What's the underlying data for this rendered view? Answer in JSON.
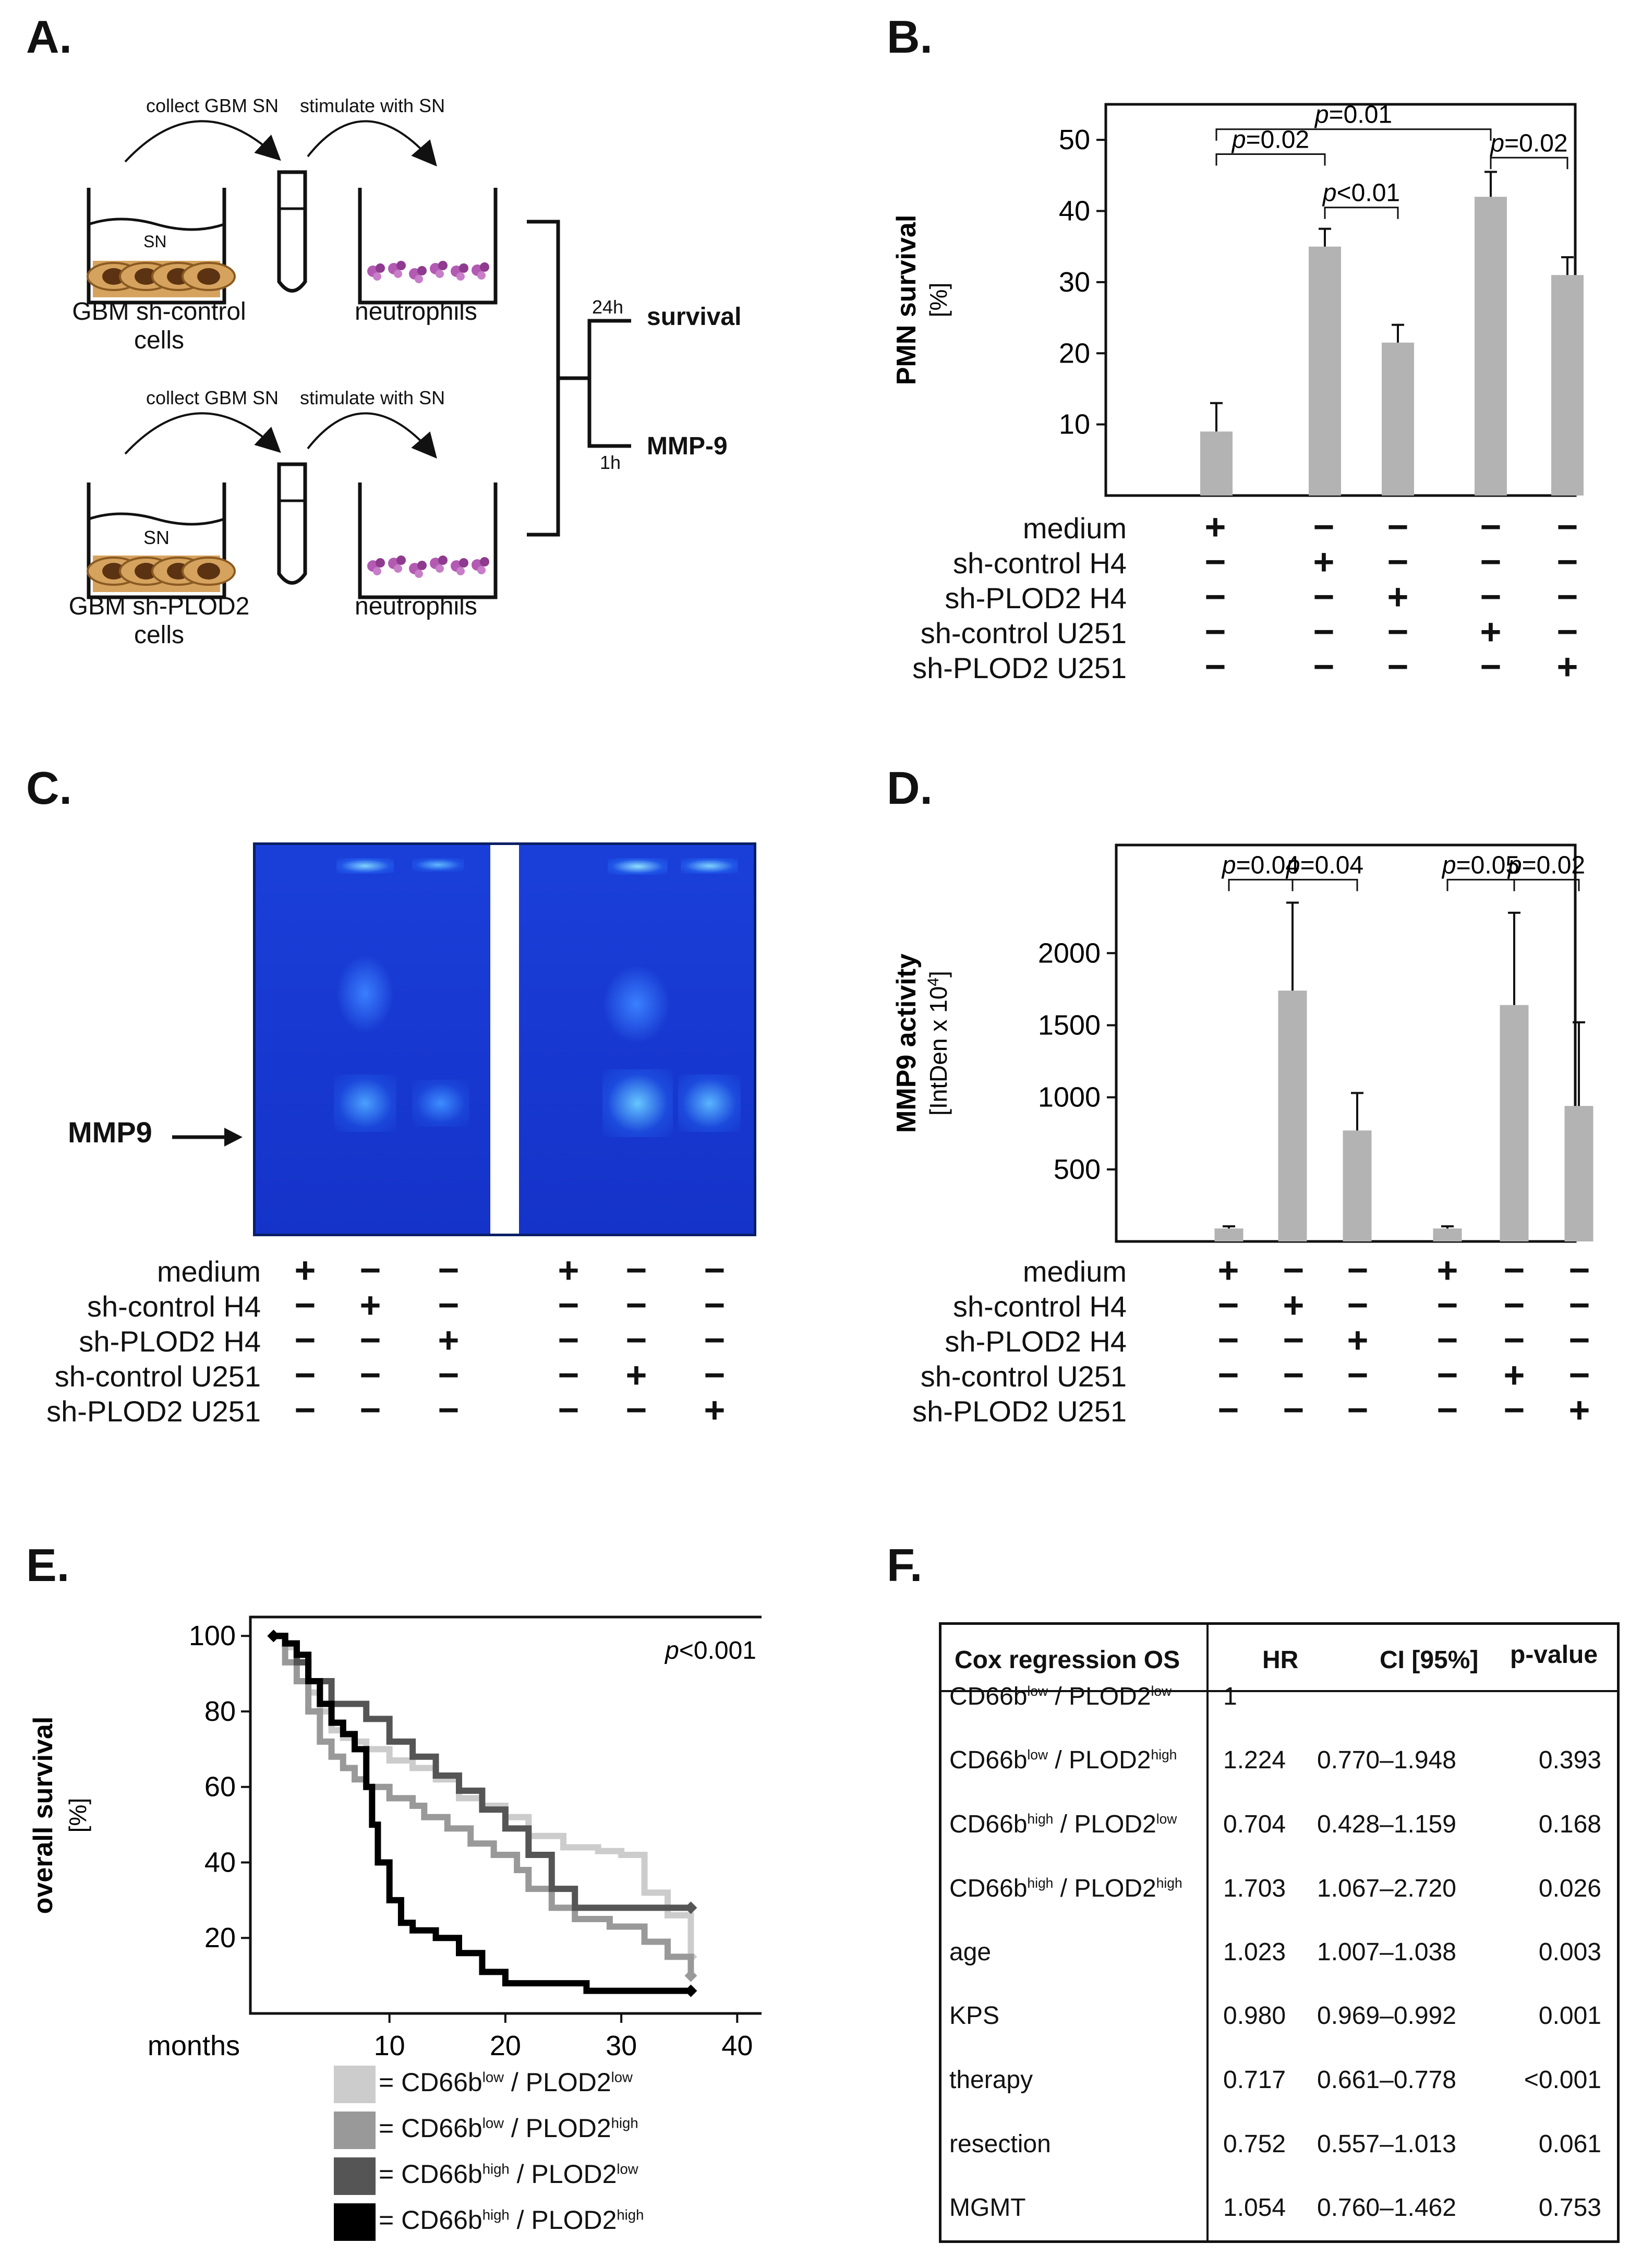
{
  "panels": {
    "a": {
      "label": "A.",
      "collect": "collect GBM SN",
      "stimulate": "stimulate with SN",
      "sn": "SN",
      "cells_top": "GBM sh-control",
      "cells_bottom": "GBM sh-PLOD2",
      "cells_word": "cells",
      "neutrophils": "neutrophils",
      "t24": "24h",
      "t1": "1h",
      "survival": "survival",
      "mmp9": "MMP-9"
    },
    "b": {
      "label": "B."
    },
    "c": {
      "label": "C.",
      "mmp9_label": "MMP9"
    },
    "d": {
      "label": "D."
    },
    "e": {
      "label": "E."
    },
    "f": {
      "label": "F."
    }
  },
  "conditions": {
    "names": [
      "medium",
      "sh-control H4",
      "sh-PLOD2 H4",
      "sh-control U251",
      "sh-PLOD2 U251"
    ],
    "bd_matrix": [
      [
        "+",
        "−",
        "−",
        "−",
        "−"
      ],
      [
        "−",
        "+",
        "−",
        "−",
        "−"
      ],
      [
        "−",
        "−",
        "+",
        "−",
        "−"
      ],
      [
        "−",
        "−",
        "−",
        "+",
        "−"
      ],
      [
        "−",
        "−",
        "−",
        "−",
        "+"
      ]
    ],
    "c_matrix": [
      [
        "+",
        "−",
        "−",
        "+",
        "−",
        "−"
      ],
      [
        "−",
        "+",
        "−",
        "−",
        "−",
        "−"
      ],
      [
        "−",
        "−",
        "+",
        "−",
        "−",
        "−"
      ],
      [
        "−",
        "−",
        "−",
        "−",
        "+",
        "−"
      ],
      [
        "−",
        "−",
        "−",
        "−",
        "−",
        "+"
      ]
    ],
    "d_matrix": [
      [
        "+",
        "−",
        "−",
        "+",
        "−",
        "−"
      ],
      [
        "−",
        "+",
        "−",
        "−",
        "−",
        "−"
      ],
      [
        "−",
        "−",
        "+",
        "−",
        "−",
        "−"
      ],
      [
        "−",
        "−",
        "−",
        "−",
        "+",
        "−"
      ],
      [
        "−",
        "−",
        "−",
        "−",
        "−",
        "+"
      ]
    ]
  },
  "chart_data": [
    {
      "id": "B",
      "type": "bar",
      "ylabel": "PMN survival",
      "ylabel_unit": "[%]",
      "categories": [
        "medium",
        "sh-control H4",
        "sh-PLOD2 H4",
        "sh-control U251",
        "sh-PLOD2 U251"
      ],
      "values": [
        9,
        35,
        21.5,
        42,
        31
      ],
      "errors": [
        4,
        2.5,
        2.5,
        3.5,
        2.5
      ],
      "ylim": [
        0,
        55
      ],
      "yticks": [
        10,
        20,
        30,
        40,
        50
      ],
      "comparisons": [
        {
          "from": 0,
          "to": 1,
          "label": "=0.02",
          "y": 48
        },
        {
          "from": 1,
          "to": 2,
          "label": "<0.01",
          "y": 40.5
        },
        {
          "from": 0,
          "to": 3,
          "label": "=0.01",
          "y": 51.5
        },
        {
          "from": 3,
          "to": 4,
          "label": "=0.02",
          "y": 47.5
        }
      ],
      "bar_color": "#b3b3b3"
    },
    {
      "id": "D",
      "type": "bar",
      "ylabel": "MMP9 activity",
      "ylabel_unit": "[IntDen x 10",
      "ylabel_sup": "4",
      "ylabel_close": "]",
      "categories": [
        "medium H4",
        "sh-control H4",
        "sh-PLOD2 H4",
        "medium U251",
        "sh-control U251",
        "sh-PLOD2 U251"
      ],
      "values": [
        90,
        1740,
        770,
        90,
        1640,
        940
      ],
      "errors": [
        15,
        610,
        260,
        15,
        640,
        580
      ],
      "ylim": [
        0,
        2750
      ],
      "yticks": [
        500,
        1000,
        1500,
        2000
      ],
      "comparisons": [
        {
          "from": 0,
          "to": 1,
          "label": "=0.04",
          "y": 2510
        },
        {
          "from": 1,
          "to": 2,
          "label": "=0.04",
          "y": 2510
        },
        {
          "from": 3,
          "to": 4,
          "label": "=0.05",
          "y": 2510
        },
        {
          "from": 4,
          "to": 5,
          "label": "=0.02",
          "y": 2510
        }
      ],
      "bar_color": "#b3b3b3"
    },
    {
      "id": "E",
      "type": "line",
      "ylabel": "overall survival",
      "ylabel_unit": "[%]",
      "xlabel": "months",
      "xlim": [
        -2,
        43
      ],
      "ylim": [
        0,
        105
      ],
      "xticks": [
        10,
        20,
        30,
        40
      ],
      "yticks": [
        20,
        40,
        60,
        80,
        100
      ],
      "annotation": "<0.001",
      "series": [
        {
          "name": "CD66b low / PLOD2 low",
          "color": "#cccccc",
          "x": [
            0,
            1,
            2,
            3,
            4,
            5,
            6,
            7,
            8,
            10,
            12,
            14,
            16,
            18,
            20,
            22,
            25,
            28,
            30,
            32,
            34,
            36
          ],
          "y": [
            100,
            97,
            93,
            85,
            80,
            75,
            73,
            72,
            70,
            67,
            65,
            62,
            57,
            55,
            52,
            47,
            44,
            43,
            42,
            32,
            26,
            15
          ]
        },
        {
          "name": "CD66b low / PLOD2 high",
          "color": "#999999",
          "x": [
            0,
            1,
            2,
            3,
            4,
            5,
            6,
            7,
            8,
            10,
            12,
            13,
            15,
            17,
            19,
            21,
            22,
            24,
            26,
            29,
            32,
            34,
            36
          ],
          "y": [
            100,
            93,
            88,
            80,
            72,
            68,
            65,
            62,
            60,
            57,
            55,
            52,
            49,
            45,
            42,
            38,
            33,
            28,
            25,
            23,
            19,
            15,
            10
          ]
        },
        {
          "name": "CD66b high / PLOD2 low",
          "color": "#555555",
          "x": [
            0,
            1,
            2,
            3,
            5,
            8,
            10,
            12,
            14,
            16,
            18,
            20,
            22,
            24,
            26,
            36
          ],
          "y": [
            100,
            98,
            93,
            88,
            82,
            78,
            72,
            68,
            63,
            59,
            54,
            49,
            42,
            33,
            28,
            28
          ]
        },
        {
          "name": "CD66b high / PLOD2 high",
          "color": "#000000",
          "x": [
            0,
            1,
            2,
            3,
            4,
            5,
            6,
            7,
            8,
            8.5,
            9,
            10,
            11,
            12,
            14,
            16,
            18,
            20,
            27,
            36
          ],
          "y": [
            100,
            98,
            95,
            88,
            82,
            77,
            74,
            70,
            60,
            50,
            40,
            30,
            24,
            22,
            20,
            16,
            11,
            8,
            6,
            6
          ]
        }
      ],
      "legend": [
        {
          "pre": "= CD66b",
          "s1": "low",
          "mid": " / PLOD2",
          "s2": "low",
          "color": "#cccccc"
        },
        {
          "pre": "= CD66b",
          "s1": "low",
          "mid": " / PLOD2",
          "s2": "high",
          "color": "#999999"
        },
        {
          "pre": "= CD66b",
          "s1": "high",
          "mid": " / PLOD2",
          "s2": "low",
          "color": "#555555"
        },
        {
          "pre": "= CD66b",
          "s1": "high",
          "mid": " / PLOD2",
          "s2": "high",
          "color": "#000000"
        }
      ]
    },
    {
      "id": "F",
      "type": "table",
      "headers": [
        "Cox regression OS",
        "HR",
        "CI [95%]",
        "p-value"
      ],
      "rows": [
        {
          "a": "low",
          "b": "low",
          "hr": "1",
          "ci": "",
          "p": ""
        },
        {
          "a": "low",
          "b": "high",
          "hr": "1.224",
          "ci": "0.770–1.948",
          "p": "0.393"
        },
        {
          "a": "high",
          "b": "low",
          "hr": "0.704",
          "ci": "0.428–1.159",
          "p": "0.168"
        },
        {
          "a": "high",
          "b": "high",
          "hr": "1.703",
          "ci": "1.067–2.720",
          "p": "0.026"
        }
      ],
      "row_prefix": "CD66b",
      "row_mid": " / PLOD2",
      "rows_plain": [
        {
          "name": "age",
          "hr": "1.023",
          "ci": "1.007–1.038",
          "p": "0.003"
        },
        {
          "name": "KPS",
          "hr": "0.980",
          "ci": "0.969–0.992",
          "p": "0.001"
        },
        {
          "name": "therapy",
          "hr": "0.717",
          "ci": "0.661–0.778",
          "p": "<0.001"
        },
        {
          "name": "resection",
          "hr": "0.752",
          "ci": "0.557–1.013",
          "p": "0.061"
        },
        {
          "name": "MGMT",
          "hr": "1.054",
          "ci": "0.760–1.462",
          "p": "0.753"
        }
      ]
    }
  ],
  "p_letter": "p"
}
